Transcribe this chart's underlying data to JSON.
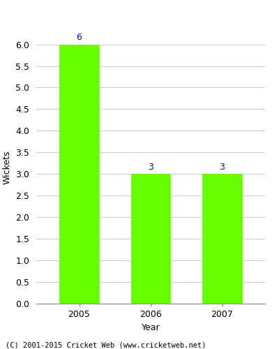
{
  "categories": [
    "2005",
    "2006",
    "2007"
  ],
  "values": [
    6,
    3,
    3
  ],
  "bar_color": "#66ff00",
  "bar_edge_color": "#66ff00",
  "label_color": "#0000cc",
  "label_fontsize": 9,
  "ylabel": "Wickets",
  "xlabel": "Year",
  "ylim": [
    0,
    6.3
  ],
  "yticks": [
    0.0,
    0.5,
    1.0,
    1.5,
    2.0,
    2.5,
    3.0,
    3.5,
    4.0,
    4.5,
    5.0,
    5.5,
    6.0
  ],
  "background_color": "#ffffff",
  "grid_color": "#cccccc",
  "tick_label_fontsize": 9,
  "axis_label_fontsize": 9,
  "footer_text": "(C) 2001-2015 Cricket Web (www.cricketweb.net)",
  "footer_fontsize": 7.5,
  "bar_width": 0.55,
  "x_positions": [
    0,
    1,
    2
  ]
}
